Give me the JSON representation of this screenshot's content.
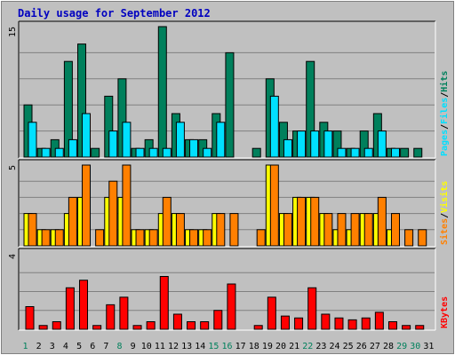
{
  "chart_data": {
    "type": "bar",
    "title": "Daily usage for September 2012",
    "categories": [
      "1",
      "2",
      "3",
      "4",
      "5",
      "6",
      "7",
      "8",
      "9",
      "10",
      "11",
      "12",
      "13",
      "14",
      "15",
      "16",
      "17",
      "18",
      "19",
      "20",
      "21",
      "22",
      "23",
      "24",
      "25",
      "26",
      "27",
      "28",
      "29",
      "30",
      "31"
    ],
    "weekend_days": [
      "1",
      "8",
      "15",
      "16",
      "22",
      "29",
      "30"
    ],
    "colors": {
      "hits": "#00805c",
      "files": "#00e0ff",
      "visits": "#ffff00",
      "sites": "#ff8000",
      "kbytes": "#ff0000",
      "weekday_label": "#000000",
      "weekend_label": "#00805c"
    },
    "panels": [
      {
        "id": "hits-files",
        "max_label": "15",
        "ylim": [
          0,
          15
        ],
        "legend": [
          "Pages",
          "/",
          "Files",
          "/",
          "Hits"
        ],
        "legend_colors": [
          "#00e0ff",
          "#000000",
          "#00e0ff",
          "#000000",
          "#00805c"
        ],
        "series": [
          {
            "name": "Hits",
            "color": "#00805c",
            "values": [
              6,
              1,
              2,
              11,
              13,
              1,
              7,
              9,
              1,
              2,
              15,
              5,
              2,
              2,
              5,
              12,
              0,
              1,
              9,
              4,
              3,
              11,
              4,
              3,
              1,
              3,
              5,
              1,
              1,
              1,
              0
            ]
          },
          {
            "name": "Files",
            "color": "#00e0ff",
            "values": [
              4,
              1,
              1,
              2,
              5,
              0,
              3,
              4,
              1,
              1,
              1,
              4,
              2,
              1,
              4,
              0,
              0,
              0,
              7,
              2,
              3,
              3,
              3,
              1,
              1,
              1,
              3,
              1,
              0,
              0,
              0
            ]
          }
        ]
      },
      {
        "id": "visits-sites",
        "max_label": "5",
        "ylim": [
          0,
          5
        ],
        "legend": [
          "Sites",
          "/",
          "Visits"
        ],
        "legend_colors": [
          "#ff8000",
          "#000000",
          "#ffff00"
        ],
        "series": [
          {
            "name": "Visits",
            "color": "#ffff00",
            "values": [
              2,
              1,
              1,
              2,
              3,
              0,
              3,
              3,
              1,
              1,
              2,
              2,
              1,
              1,
              2,
              0,
              0,
              0,
              5,
              2,
              3,
              3,
              2,
              1,
              1,
              2,
              2,
              1,
              0,
              0,
              0
            ]
          },
          {
            "name": "Sites",
            "color": "#ff8000",
            "values": [
              2,
              1,
              1,
              3,
              5,
              1,
              4,
              5,
              1,
              1,
              3,
              2,
              1,
              1,
              2,
              2,
              0,
              1,
              5,
              2,
              3,
              3,
              2,
              2,
              2,
              2,
              3,
              2,
              1,
              1,
              0
            ]
          }
        ]
      },
      {
        "id": "kbytes",
        "max_label": "4",
        "ylim": [
          0,
          4
        ],
        "legend": [
          "KBytes"
        ],
        "legend_colors": [
          "#ff0000"
        ],
        "series": [
          {
            "name": "KBytes",
            "color": "#ff0000",
            "values": [
              1.2,
              0.2,
              0.4,
              2.2,
              2.6,
              0.2,
              1.3,
              1.7,
              0.2,
              0.4,
              2.8,
              0.8,
              0.4,
              0.4,
              1.0,
              2.4,
              0,
              0.2,
              1.7,
              0.7,
              0.6,
              2.2,
              0.8,
              0.6,
              0.5,
              0.6,
              0.9,
              0.4,
              0.2,
              0.2,
              0
            ]
          }
        ]
      }
    ]
  }
}
